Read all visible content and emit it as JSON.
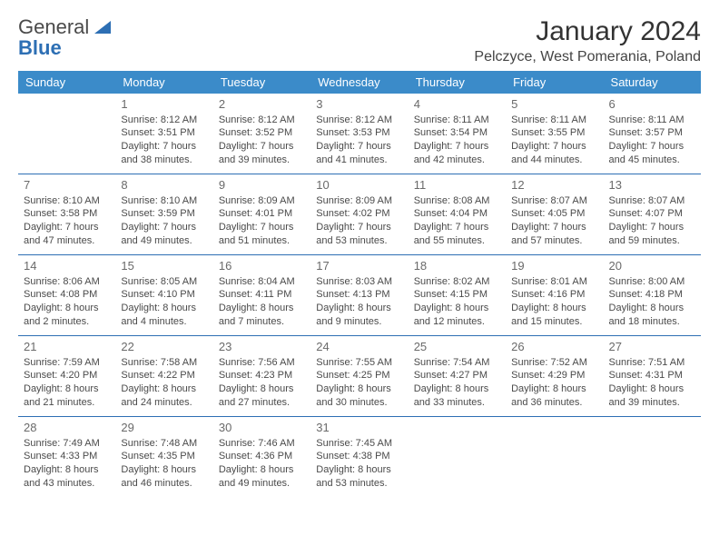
{
  "brand": {
    "line1": "General",
    "line2": "Blue"
  },
  "title": "January 2024",
  "location": "Pelczyce, West Pomerania, Poland",
  "colors": {
    "header_bg": "#3b8bc9",
    "header_text": "#ffffff",
    "row_divider": "#2d6fb4",
    "text": "#4a4a4a",
    "daynum": "#6a6a6a",
    "brand_gray": "#4a4a4a",
    "brand_blue": "#2d6fb4",
    "page_bg": "#ffffff"
  },
  "day_headers": [
    "Sunday",
    "Monday",
    "Tuesday",
    "Wednesday",
    "Thursday",
    "Friday",
    "Saturday"
  ],
  "weeks": [
    [
      {
        "num": "",
        "lines": [
          "",
          "",
          "",
          ""
        ]
      },
      {
        "num": "1",
        "lines": [
          "Sunrise: 8:12 AM",
          "Sunset: 3:51 PM",
          "Daylight: 7 hours",
          "and 38 minutes."
        ]
      },
      {
        "num": "2",
        "lines": [
          "Sunrise: 8:12 AM",
          "Sunset: 3:52 PM",
          "Daylight: 7 hours",
          "and 39 minutes."
        ]
      },
      {
        "num": "3",
        "lines": [
          "Sunrise: 8:12 AM",
          "Sunset: 3:53 PM",
          "Daylight: 7 hours",
          "and 41 minutes."
        ]
      },
      {
        "num": "4",
        "lines": [
          "Sunrise: 8:11 AM",
          "Sunset: 3:54 PM",
          "Daylight: 7 hours",
          "and 42 minutes."
        ]
      },
      {
        "num": "5",
        "lines": [
          "Sunrise: 8:11 AM",
          "Sunset: 3:55 PM",
          "Daylight: 7 hours",
          "and 44 minutes."
        ]
      },
      {
        "num": "6",
        "lines": [
          "Sunrise: 8:11 AM",
          "Sunset: 3:57 PM",
          "Daylight: 7 hours",
          "and 45 minutes."
        ]
      }
    ],
    [
      {
        "num": "7",
        "lines": [
          "Sunrise: 8:10 AM",
          "Sunset: 3:58 PM",
          "Daylight: 7 hours",
          "and 47 minutes."
        ]
      },
      {
        "num": "8",
        "lines": [
          "Sunrise: 8:10 AM",
          "Sunset: 3:59 PM",
          "Daylight: 7 hours",
          "and 49 minutes."
        ]
      },
      {
        "num": "9",
        "lines": [
          "Sunrise: 8:09 AM",
          "Sunset: 4:01 PM",
          "Daylight: 7 hours",
          "and 51 minutes."
        ]
      },
      {
        "num": "10",
        "lines": [
          "Sunrise: 8:09 AM",
          "Sunset: 4:02 PM",
          "Daylight: 7 hours",
          "and 53 minutes."
        ]
      },
      {
        "num": "11",
        "lines": [
          "Sunrise: 8:08 AM",
          "Sunset: 4:04 PM",
          "Daylight: 7 hours",
          "and 55 minutes."
        ]
      },
      {
        "num": "12",
        "lines": [
          "Sunrise: 8:07 AM",
          "Sunset: 4:05 PM",
          "Daylight: 7 hours",
          "and 57 minutes."
        ]
      },
      {
        "num": "13",
        "lines": [
          "Sunrise: 8:07 AM",
          "Sunset: 4:07 PM",
          "Daylight: 7 hours",
          "and 59 minutes."
        ]
      }
    ],
    [
      {
        "num": "14",
        "lines": [
          "Sunrise: 8:06 AM",
          "Sunset: 4:08 PM",
          "Daylight: 8 hours",
          "and 2 minutes."
        ]
      },
      {
        "num": "15",
        "lines": [
          "Sunrise: 8:05 AM",
          "Sunset: 4:10 PM",
          "Daylight: 8 hours",
          "and 4 minutes."
        ]
      },
      {
        "num": "16",
        "lines": [
          "Sunrise: 8:04 AM",
          "Sunset: 4:11 PM",
          "Daylight: 8 hours",
          "and 7 minutes."
        ]
      },
      {
        "num": "17",
        "lines": [
          "Sunrise: 8:03 AM",
          "Sunset: 4:13 PM",
          "Daylight: 8 hours",
          "and 9 minutes."
        ]
      },
      {
        "num": "18",
        "lines": [
          "Sunrise: 8:02 AM",
          "Sunset: 4:15 PM",
          "Daylight: 8 hours",
          "and 12 minutes."
        ]
      },
      {
        "num": "19",
        "lines": [
          "Sunrise: 8:01 AM",
          "Sunset: 4:16 PM",
          "Daylight: 8 hours",
          "and 15 minutes."
        ]
      },
      {
        "num": "20",
        "lines": [
          "Sunrise: 8:00 AM",
          "Sunset: 4:18 PM",
          "Daylight: 8 hours",
          "and 18 minutes."
        ]
      }
    ],
    [
      {
        "num": "21",
        "lines": [
          "Sunrise: 7:59 AM",
          "Sunset: 4:20 PM",
          "Daylight: 8 hours",
          "and 21 minutes."
        ]
      },
      {
        "num": "22",
        "lines": [
          "Sunrise: 7:58 AM",
          "Sunset: 4:22 PM",
          "Daylight: 8 hours",
          "and 24 minutes."
        ]
      },
      {
        "num": "23",
        "lines": [
          "Sunrise: 7:56 AM",
          "Sunset: 4:23 PM",
          "Daylight: 8 hours",
          "and 27 minutes."
        ]
      },
      {
        "num": "24",
        "lines": [
          "Sunrise: 7:55 AM",
          "Sunset: 4:25 PM",
          "Daylight: 8 hours",
          "and 30 minutes."
        ]
      },
      {
        "num": "25",
        "lines": [
          "Sunrise: 7:54 AM",
          "Sunset: 4:27 PM",
          "Daylight: 8 hours",
          "and 33 minutes."
        ]
      },
      {
        "num": "26",
        "lines": [
          "Sunrise: 7:52 AM",
          "Sunset: 4:29 PM",
          "Daylight: 8 hours",
          "and 36 minutes."
        ]
      },
      {
        "num": "27",
        "lines": [
          "Sunrise: 7:51 AM",
          "Sunset: 4:31 PM",
          "Daylight: 8 hours",
          "and 39 minutes."
        ]
      }
    ],
    [
      {
        "num": "28",
        "lines": [
          "Sunrise: 7:49 AM",
          "Sunset: 4:33 PM",
          "Daylight: 8 hours",
          "and 43 minutes."
        ]
      },
      {
        "num": "29",
        "lines": [
          "Sunrise: 7:48 AM",
          "Sunset: 4:35 PM",
          "Daylight: 8 hours",
          "and 46 minutes."
        ]
      },
      {
        "num": "30",
        "lines": [
          "Sunrise: 7:46 AM",
          "Sunset: 4:36 PM",
          "Daylight: 8 hours",
          "and 49 minutes."
        ]
      },
      {
        "num": "31",
        "lines": [
          "Sunrise: 7:45 AM",
          "Sunset: 4:38 PM",
          "Daylight: 8 hours",
          "and 53 minutes."
        ]
      },
      {
        "num": "",
        "lines": [
          "",
          "",
          "",
          ""
        ]
      },
      {
        "num": "",
        "lines": [
          "",
          "",
          "",
          ""
        ]
      },
      {
        "num": "",
        "lines": [
          "",
          "",
          "",
          ""
        ]
      }
    ]
  ]
}
